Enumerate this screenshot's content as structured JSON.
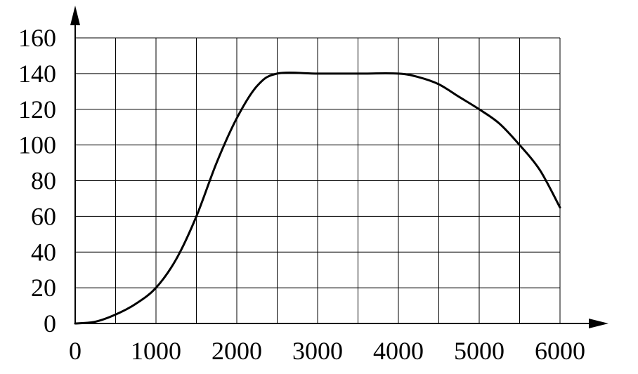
{
  "chart_data": {
    "type": "line",
    "title": "",
    "xlabel": "",
    "ylabel": "",
    "xlim": [
      0,
      6000
    ],
    "ylim": [
      0,
      160
    ],
    "x_ticks": [
      0,
      1000,
      2000,
      3000,
      4000,
      5000,
      6000
    ],
    "y_ticks": [
      0,
      20,
      40,
      60,
      80,
      100,
      120,
      140,
      160
    ],
    "x_tick_labels": [
      "0",
      "1000",
      "2000",
      "3000",
      "4000",
      "5000",
      "6000"
    ],
    "y_tick_labels": [
      "0",
      "20",
      "40",
      "60",
      "80",
      "100",
      "120",
      "140",
      "160"
    ],
    "grid": true,
    "grid_x_step": 500,
    "grid_y_step": 20,
    "series": [
      {
        "color": "#000000",
        "x": [
          0,
          250,
          500,
          750,
          1000,
          1250,
          1500,
          1750,
          2000,
          2250,
          2500,
          3000,
          3500,
          4000,
          4250,
          4500,
          4750,
          5000,
          5250,
          5500,
          5750,
          6000
        ],
        "y": [
          0,
          1,
          5,
          11,
          20,
          36,
          60,
          90,
          115,
          133,
          140,
          140,
          140,
          140,
          138,
          134,
          127,
          120,
          112,
          100,
          86,
          65
        ]
      }
    ]
  }
}
